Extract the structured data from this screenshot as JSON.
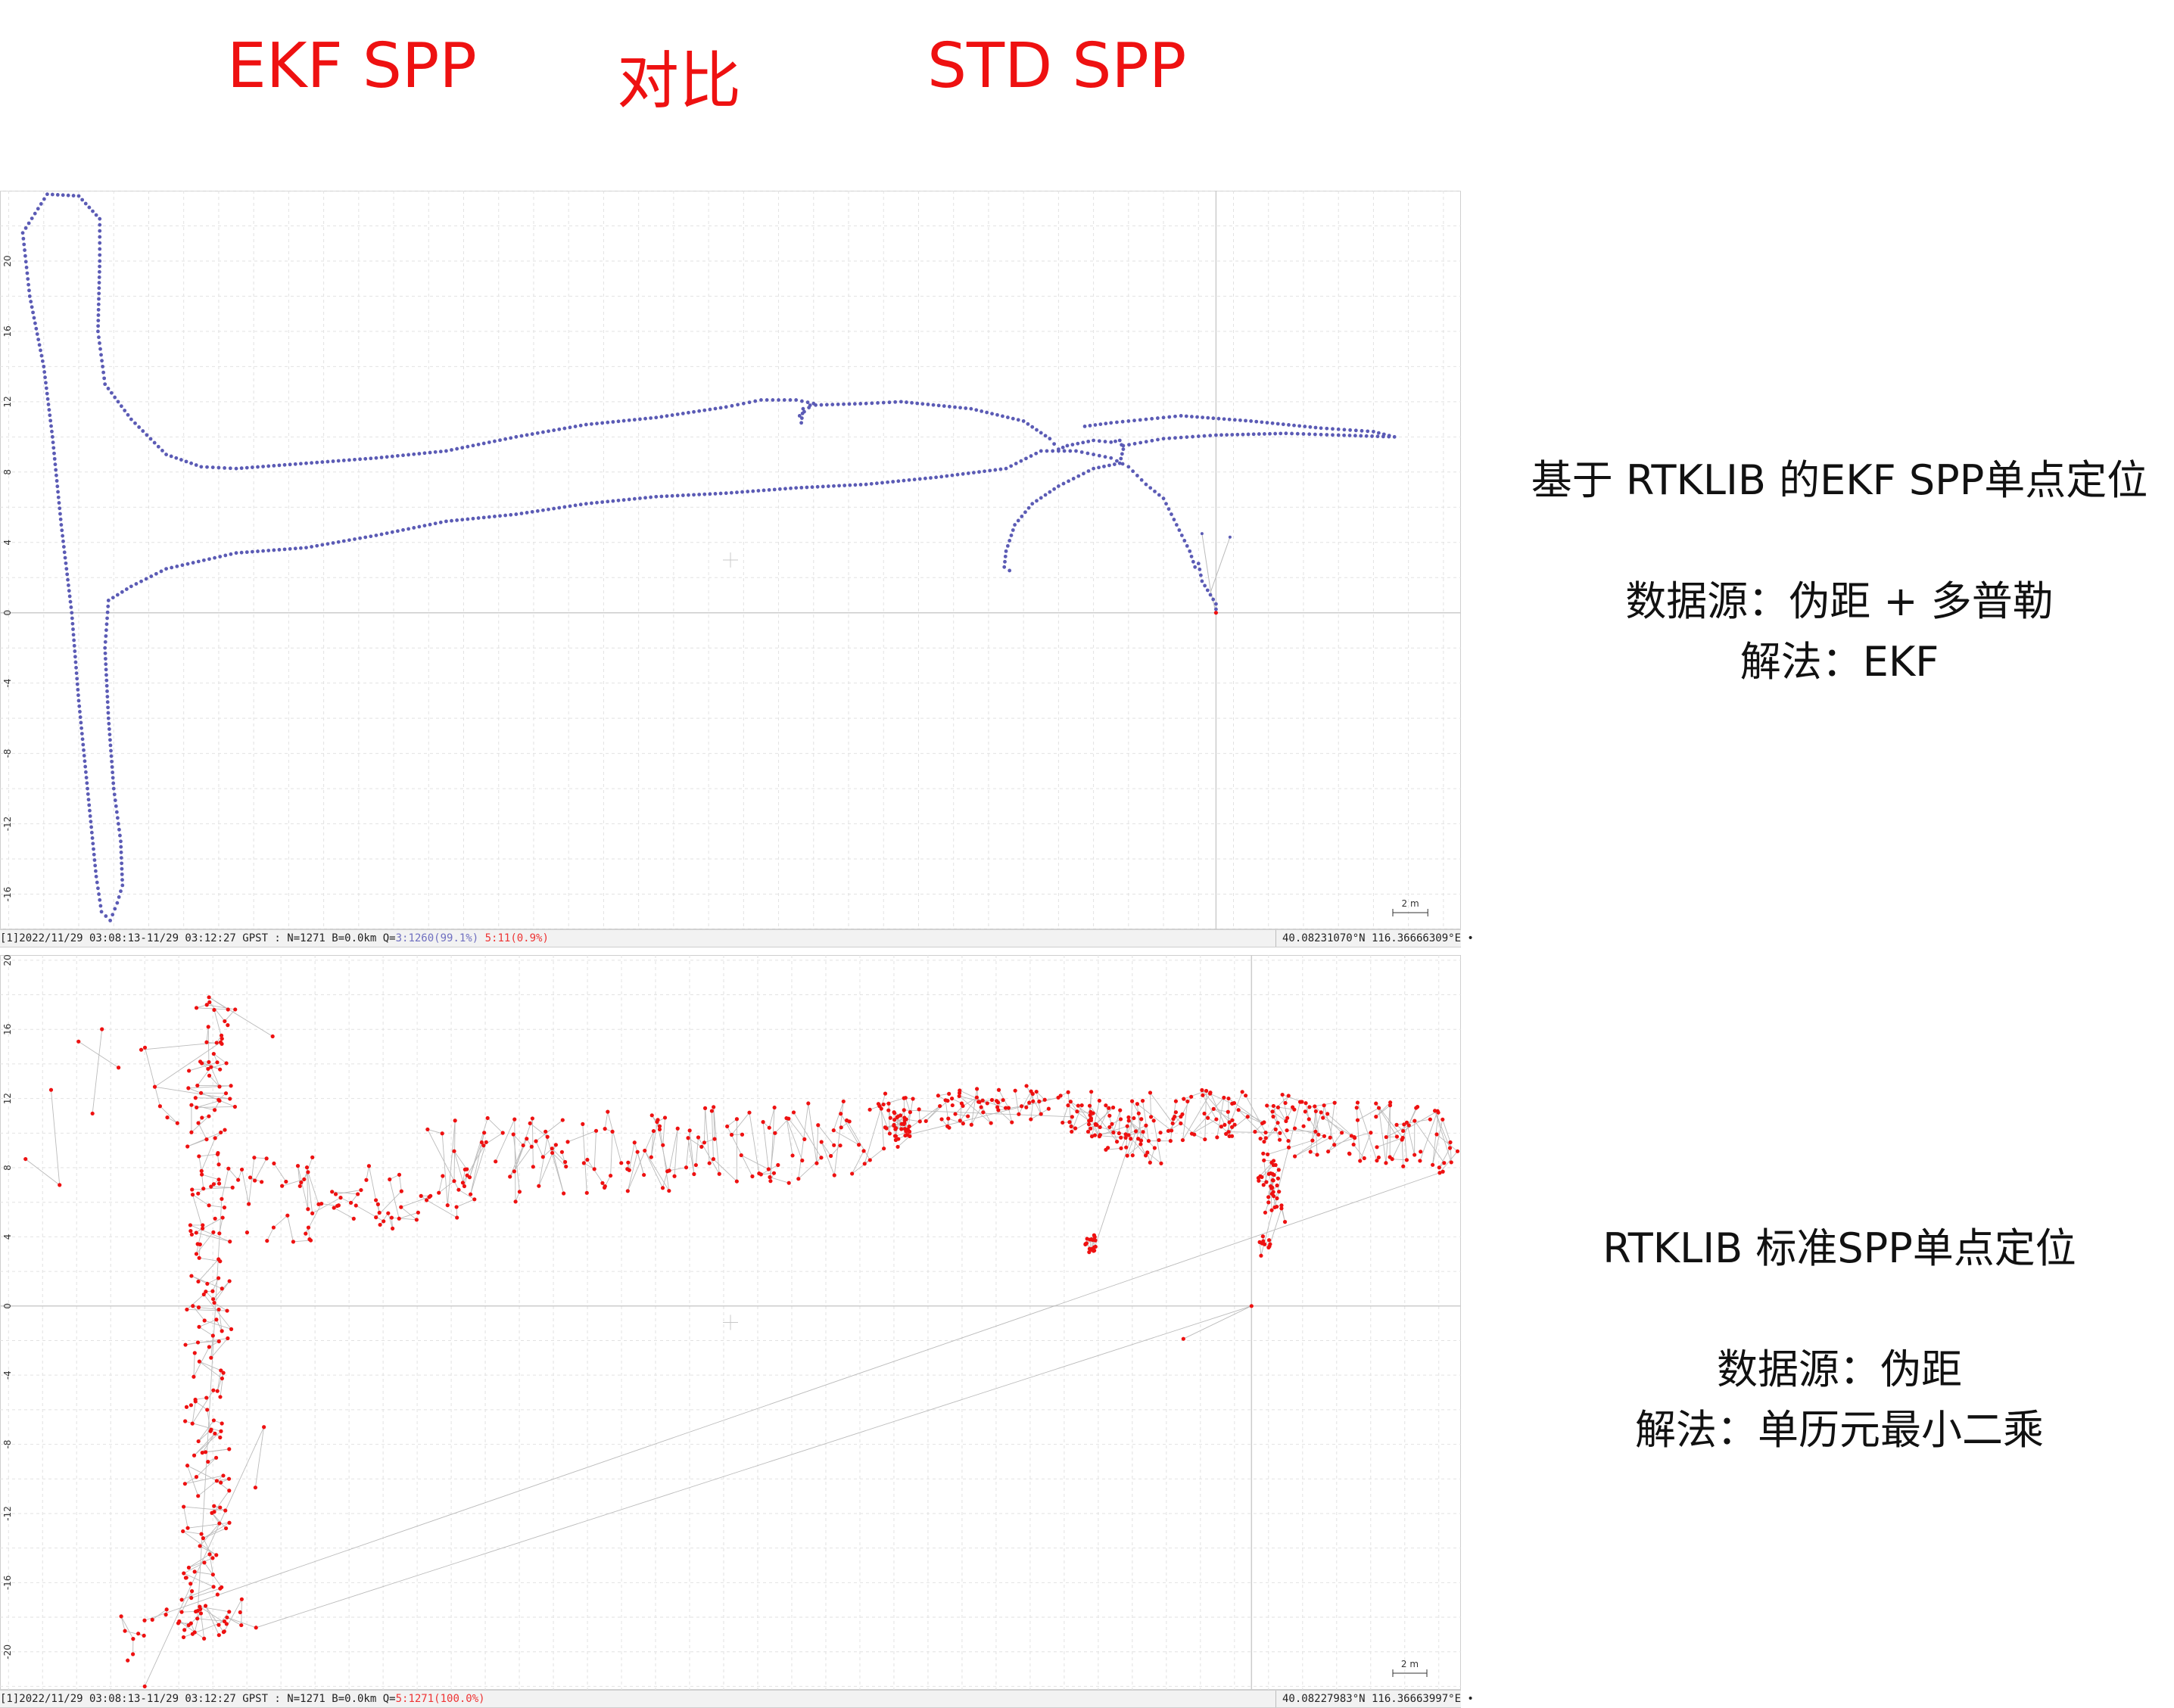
{
  "header": {
    "left": "EKF SPP",
    "middle": "对比",
    "right": "STD SPP"
  },
  "side_notes": [
    {
      "lines": [
        "基于 RTKLIB 的EKF SPP单点定位",
        "数据源：伪距 + 多普勒",
        "解法：EKF"
      ]
    },
    {
      "lines": [
        "RTKLIB 标准SPP单点定位",
        "数据源：伪距",
        "解法：单历元最小二乘"
      ]
    }
  ],
  "status_bars": [
    {
      "text": "[1]2022/11/29 03:08:13-11/29 03:12:27 GPST : N=1271 B=0.0km Q=",
      "q_a": "3:1260(99.1%)",
      "q_b": "5:11(0.9%)",
      "coords": "40.08231070°N  116.36666309°E  •"
    },
    {
      "text": "[1]2022/11/29 03:08:13-11/29 03:12:27 GPST : N=1271 B=0.0km Q=",
      "q_a": "5:1271(100.0%)",
      "q_b": "",
      "coords": "40.08227983°N  116.36663997°E  •"
    }
  ],
  "colors": {
    "title": "#ee1111",
    "ekf_track": "#5b5bb5",
    "spp_point": "#ee1111",
    "grid": "#e2e2e2",
    "axis": "#cccccc",
    "connector": "#bbbbbb"
  },
  "chart_data": [
    {
      "type": "scatter",
      "title": "",
      "xlabel": "",
      "ylabel": "",
      "xlim": [
        -69.5,
        14
      ],
      "ylim": [
        -18,
        24
      ],
      "xticks": [
        -68,
        -64,
        -60,
        -56,
        -52,
        -48,
        -44,
        -40,
        -36,
        -32,
        -28,
        -24,
        -20,
        -16,
        -12,
        -8,
        -4,
        0,
        4,
        8,
        12
      ],
      "yticks": [
        20,
        16,
        12,
        8,
        4,
        0,
        -4,
        -8,
        -12,
        -16
      ],
      "grid": true,
      "scale_label": "2 m",
      "track_vertices": [
        [
          0,
          0.2
        ],
        [
          0,
          0.5
        ],
        [
          -0.8,
          1.8
        ],
        [
          -1.0,
          2.8
        ],
        [
          -1.2,
          2.6
        ],
        [
          -1.5,
          3.5
        ],
        [
          -3,
          6.5
        ],
        [
          -4,
          7.3
        ],
        [
          -5,
          8.3
        ],
        [
          -6,
          8.8
        ],
        [
          -8,
          9.2
        ],
        [
          -10,
          9.2
        ],
        [
          -12,
          8.2
        ],
        [
          -16,
          7.7
        ],
        [
          -20,
          7.3
        ],
        [
          -24,
          7.1
        ],
        [
          -28,
          6.8
        ],
        [
          -32,
          6.6
        ],
        [
          -36,
          6.2
        ],
        [
          -40,
          5.6
        ],
        [
          -44,
          5.2
        ],
        [
          -48,
          4.4
        ],
        [
          -52,
          3.7
        ],
        [
          -56,
          3.4
        ],
        [
          -60,
          2.5
        ],
        [
          -62,
          1.5
        ],
        [
          -63.3,
          0.7
        ],
        [
          -63.5,
          -2
        ],
        [
          -63.3,
          -6
        ],
        [
          -63.0,
          -10
        ],
        [
          -62.6,
          -13
        ],
        [
          -62.5,
          -15.5
        ],
        [
          -62.8,
          -16.5
        ],
        [
          -63.2,
          -17.5
        ],
        [
          -63.7,
          -17
        ],
        [
          -64,
          -15
        ],
        [
          -64.5,
          -10
        ],
        [
          -65,
          -5
        ],
        [
          -65.4,
          0
        ],
        [
          -66,
          5
        ],
        [
          -66.5,
          10
        ],
        [
          -67,
          14
        ],
        [
          -67.8,
          18
        ],
        [
          -68.2,
          21.6
        ],
        [
          -66.8,
          23.8
        ],
        [
          -65,
          23.7
        ],
        [
          -63.8,
          22.4
        ],
        [
          -63.8,
          20
        ],
        [
          -63.9,
          16
        ],
        [
          -63.5,
          13
        ],
        [
          -62,
          11
        ],
        [
          -60,
          9
        ],
        [
          -58,
          8.3
        ],
        [
          -56,
          8.2
        ],
        [
          -52,
          8.5
        ],
        [
          -48,
          8.8
        ],
        [
          -44,
          9.2
        ],
        [
          -40,
          10.0
        ],
        [
          -36,
          10.7
        ],
        [
          -32,
          11.1
        ],
        [
          -28,
          11.7
        ],
        [
          -26,
          12.1
        ],
        [
          -24,
          12.1
        ],
        [
          -23,
          11.9
        ],
        [
          -23.8,
          11.2
        ],
        [
          -23.7,
          10.8
        ],
        [
          -23.6,
          11.6
        ],
        [
          -23.2,
          11.8
        ],
        [
          -20,
          11.9
        ],
        [
          -18,
          12.0
        ],
        [
          -14,
          11.6
        ],
        [
          -11,
          10.9
        ],
        [
          -9.5,
          9.9
        ],
        [
          -9.0,
          9.3
        ],
        [
          -8.5,
          9.5
        ],
        [
          -7,
          9.8
        ],
        [
          -6,
          9.7
        ],
        [
          -5.5,
          9.8
        ],
        [
          -5.3,
          9.3
        ],
        [
          -5.5,
          8.5
        ],
        [
          -7,
          8.2
        ],
        [
          -9,
          7.2
        ],
        [
          -10.5,
          6.2
        ],
        [
          -11.5,
          5
        ],
        [
          -12,
          3.5
        ],
        [
          -12.1,
          2.6
        ],
        [
          -11.8,
          2.4
        ]
      ],
      "track_vertices_2": [
        [
          -5.3,
          9.5
        ],
        [
          -3,
          9.9
        ],
        [
          0,
          10.1
        ],
        [
          4,
          10.2
        ],
        [
          7,
          10.1
        ],
        [
          10.2,
          10.0
        ],
        [
          9,
          10.3
        ],
        [
          6,
          10.5
        ],
        [
          2,
          10.9
        ],
        [
          -2,
          11.2
        ],
        [
          -4,
          11.0
        ],
        [
          -6,
          10.8
        ],
        [
          -7.5,
          10.6
        ]
      ],
      "stray_points": [
        [
          0,
          0
        ],
        [
          0.8,
          4.3
        ],
        [
          -0.8,
          4.5
        ]
      ]
    },
    {
      "type": "scatter",
      "title": "",
      "xlabel": "",
      "ylabel": "",
      "xlim": [
        -73.5,
        12.3
      ],
      "ylim": [
        -22.2,
        20.3
      ],
      "xticks": [
        -72,
        -68,
        -64,
        -60,
        -56,
        -52,
        -48,
        -44,
        -40,
        -36,
        -32,
        -28,
        -24,
        -20,
        -16,
        -12,
        -8,
        -4,
        0,
        4,
        8,
        12
      ],
      "yticks": [
        20,
        16,
        12,
        8,
        4,
        0,
        -4,
        -8,
        -12,
        -16,
        -20
      ],
      "grid": true,
      "scale_label": "2 m",
      "note": "point cloud generated from cluster centers below (pseudo-random, deterministic seed)",
      "clusters": [
        {
          "from": [
            -69,
            12.5
          ],
          "to": [
            -60,
            13
          ],
          "n": 14,
          "spread": [
            3.0,
            3.5
          ]
        },
        {
          "from": [
            -61,
            18
          ],
          "to": [
            -61.5,
            -19
          ],
          "n": 190,
          "spread": [
            1.4,
            1.0
          ]
        },
        {
          "from": [
            -60,
            7.5
          ],
          "to": [
            -50,
            6.5
          ],
          "n": 40,
          "spread": [
            1.2,
            1.6
          ]
        },
        {
          "from": [
            -58,
            4.5
          ],
          "to": [
            -46,
            6
          ],
          "n": 30,
          "spread": [
            1.0,
            1.0
          ]
        },
        {
          "from": [
            -48,
            8.2
          ],
          "to": [
            -22,
            10
          ],
          "n": 150,
          "spread": [
            0.9,
            2.5
          ]
        },
        {
          "from": [
            -22,
            11
          ],
          "to": [
            -12,
            11.8
          ],
          "n": 80,
          "spread": [
            1.0,
            1.1
          ]
        },
        {
          "from": [
            -20.5,
            10
          ],
          "to": [
            -20.5,
            10.5
          ],
          "n": 25,
          "spread": [
            0.5,
            0.9
          ]
        },
        {
          "from": [
            -11,
            11.5
          ],
          "to": [
            -6,
            9.5
          ],
          "n": 70,
          "spread": [
            1.0,
            1.3
          ]
        },
        {
          "from": [
            -9.5,
            3.7
          ],
          "to": [
            -9.5,
            3.5
          ],
          "n": 18,
          "spread": [
            0.4,
            0.5
          ]
        },
        {
          "from": [
            -6,
            11
          ],
          "to": [
            3,
            11
          ],
          "n": 90,
          "spread": [
            1.2,
            1.5
          ]
        },
        {
          "from": [
            0.8,
            8
          ],
          "to": [
            1.5,
            6
          ],
          "n": 40,
          "spread": [
            0.5,
            1.2
          ]
        },
        {
          "from": [
            1,
            4
          ],
          "to": [
            0.6,
            3.3
          ],
          "n": 10,
          "spread": [
            0.3,
            0.5
          ]
        },
        {
          "from": [
            3,
            10.5
          ],
          "to": [
            12,
            9.5
          ],
          "n": 75,
          "spread": [
            1.2,
            1.8
          ]
        },
        {
          "from": [
            -66,
            -19
          ],
          "to": [
            -59,
            -17.5
          ],
          "n": 30,
          "spread": [
            1.2,
            1.2
          ]
        }
      ],
      "anchor_points": [
        [
          0,
          0
        ],
        [
          -4,
          -1.9
        ],
        [
          -72,
          8.5
        ],
        [
          -70,
          7
        ],
        [
          -70.5,
          12.5
        ],
        [
          -66,
          -20.5
        ],
        [
          -65,
          -22
        ],
        [
          -58,
          -7
        ],
        [
          -58.5,
          -10.5
        ]
      ]
    }
  ]
}
